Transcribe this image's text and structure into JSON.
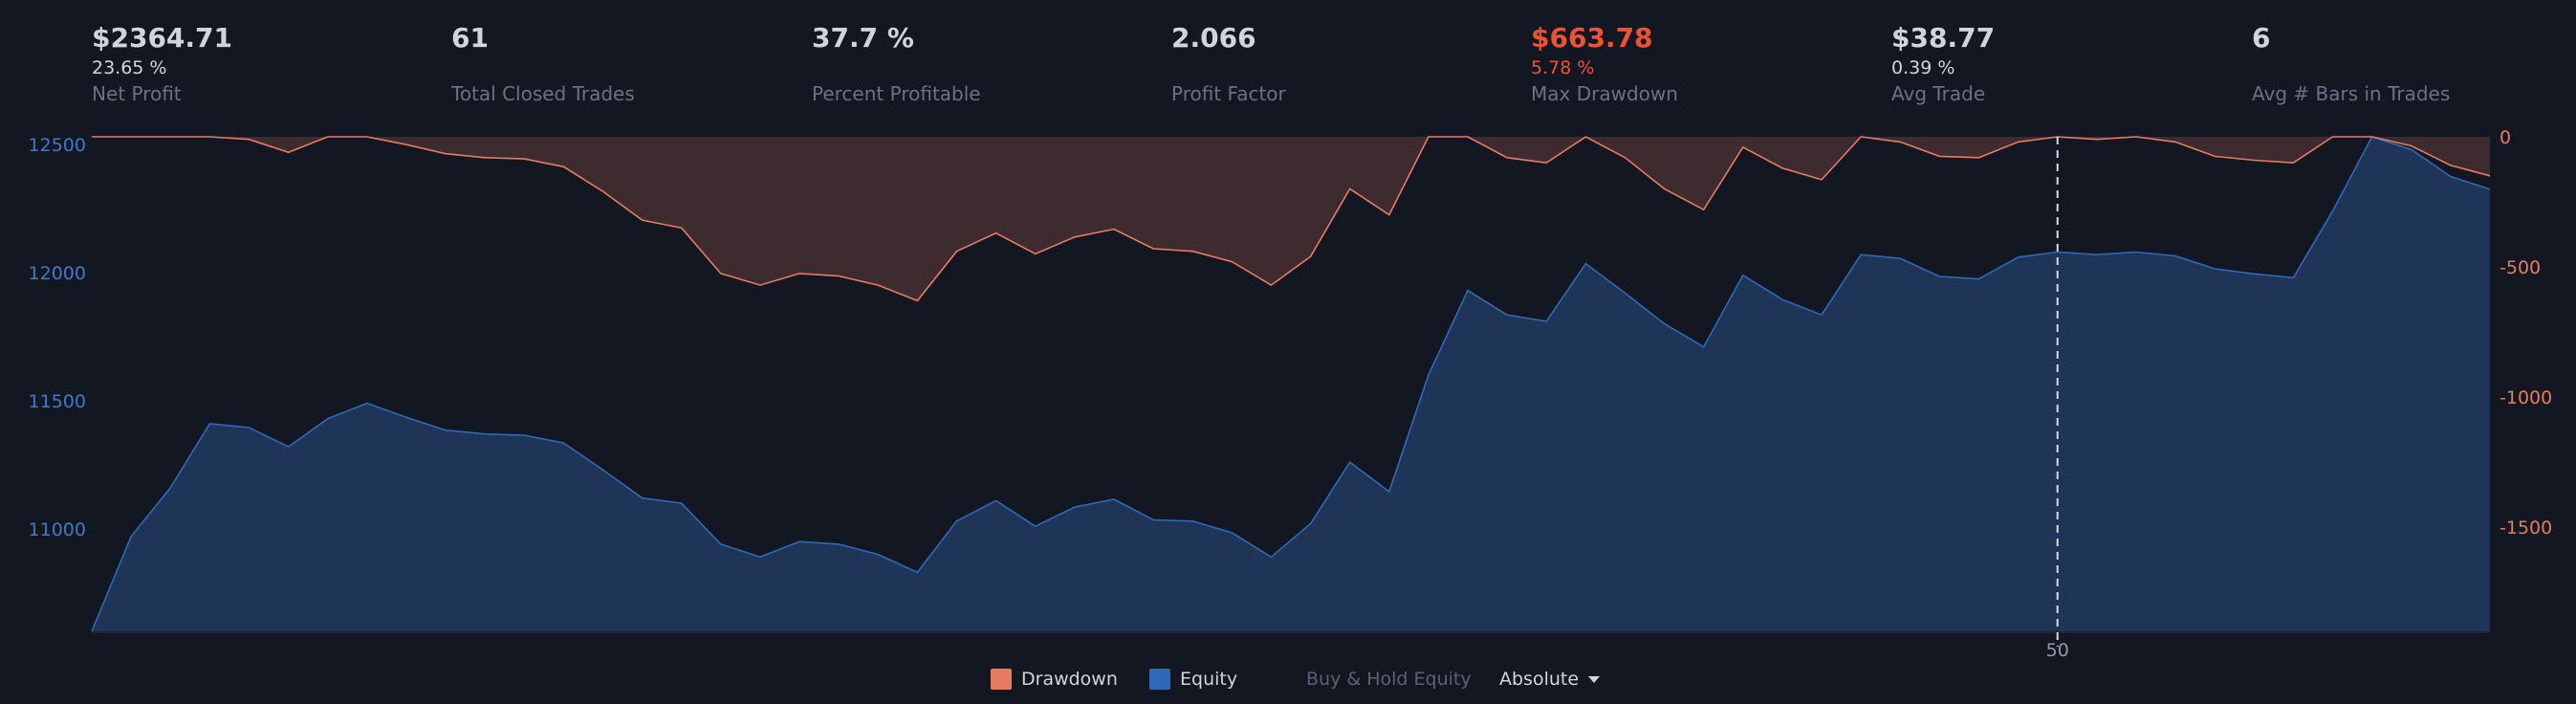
{
  "stats": [
    {
      "value": "$2364.71",
      "pct": "23.65 %",
      "label": "Net Profit",
      "negative": false
    },
    {
      "value": "61",
      "pct": "",
      "label": "Total Closed Trades",
      "negative": false
    },
    {
      "value": "37.7 %",
      "pct": "",
      "label": "Percent Profitable",
      "negative": false
    },
    {
      "value": "2.066",
      "pct": "",
      "label": "Profit Factor",
      "negative": false
    },
    {
      "value": "$663.78",
      "pct": "5.78 %",
      "label": "Max Drawdown",
      "negative": true
    },
    {
      "value": "$38.77",
      "pct": "0.39 %",
      "label": "Avg Trade",
      "negative": false
    },
    {
      "value": "6",
      "pct": "",
      "label": "Avg # Bars in Trades",
      "negative": false
    }
  ],
  "legend": {
    "drawdown": "Drawdown",
    "equity": "Equity",
    "buy_hold": "Buy & Hold Equity",
    "mode": "Absolute"
  },
  "colors": {
    "equity_line": "#2e69b8",
    "equity_fill": "#1f3558",
    "drawdown_line": "#e77a60",
    "drawdown_fill": "#3d2b30",
    "swatch_drawdown": "#e77a60",
    "swatch_equity": "#2e69b8",
    "left_axis_text": "#3f79c8",
    "right_axis_text": "#e77a60"
  },
  "chart_data": {
    "type": "area",
    "x": [
      0,
      1,
      2,
      3,
      4,
      5,
      6,
      7,
      8,
      9,
      10,
      11,
      12,
      13,
      14,
      15,
      16,
      17,
      18,
      19,
      20,
      21,
      22,
      23,
      24,
      25,
      26,
      27,
      28,
      29,
      30,
      31,
      32,
      33,
      34,
      35,
      36,
      37,
      38,
      39,
      40,
      41,
      42,
      43,
      44,
      45,
      46,
      47,
      48,
      49,
      50,
      51,
      52,
      53,
      54,
      55,
      56,
      57,
      58,
      59,
      60,
      61
    ],
    "x_ticks": [
      50
    ],
    "x_tick_labels": [
      "50"
    ],
    "crosshair_x": 50,
    "series": [
      {
        "name": "Equity",
        "axis": "left",
        "values": [
          10600,
          10970,
          11160,
          11410,
          11395,
          11320,
          11430,
          11490,
          11435,
          11385,
          11370,
          11365,
          11335,
          11230,
          11120,
          11100,
          10940,
          10890,
          10950,
          10940,
          10900,
          10830,
          11030,
          11110,
          11010,
          11085,
          11115,
          11035,
          11030,
          10985,
          10890,
          11020,
          11260,
          11145,
          11600,
          11930,
          11835,
          11810,
          12035,
          11920,
          11800,
          11710,
          11990,
          11895,
          11835,
          12070,
          12055,
          11985,
          11975,
          12060,
          12080,
          12070,
          12080,
          12065,
          12015,
          11995,
          11980,
          12240,
          12530,
          12480,
          12375,
          12325
        ]
      },
      {
        "name": "Drawdown",
        "axis": "right",
        "values": [
          0,
          0,
          0,
          0,
          -10,
          -60,
          0,
          0,
          -30,
          -65,
          -80,
          -85,
          -115,
          -210,
          -320,
          -350,
          -525,
          -570,
          -525,
          -535,
          -570,
          -630,
          -440,
          -370,
          -450,
          -385,
          -355,
          -430,
          -440,
          -480,
          -570,
          -460,
          -200,
          -300,
          0,
          0,
          -80,
          -100,
          0,
          -80,
          -200,
          -280,
          -40,
          -120,
          -165,
          0,
          -20,
          -75,
          -80,
          -20,
          0,
          -10,
          0,
          -20,
          -75,
          -90,
          -100,
          0,
          0,
          -35,
          -110,
          -150
        ]
      }
    ],
    "left_axis": {
      "ticks": [
        11000,
        11500,
        12000,
        12500
      ],
      "range": [
        10600,
        12530
      ]
    },
    "right_axis": {
      "ticks": [
        0,
        -500,
        -1000,
        -1500
      ],
      "range": [
        -1900,
        0
      ]
    }
  }
}
